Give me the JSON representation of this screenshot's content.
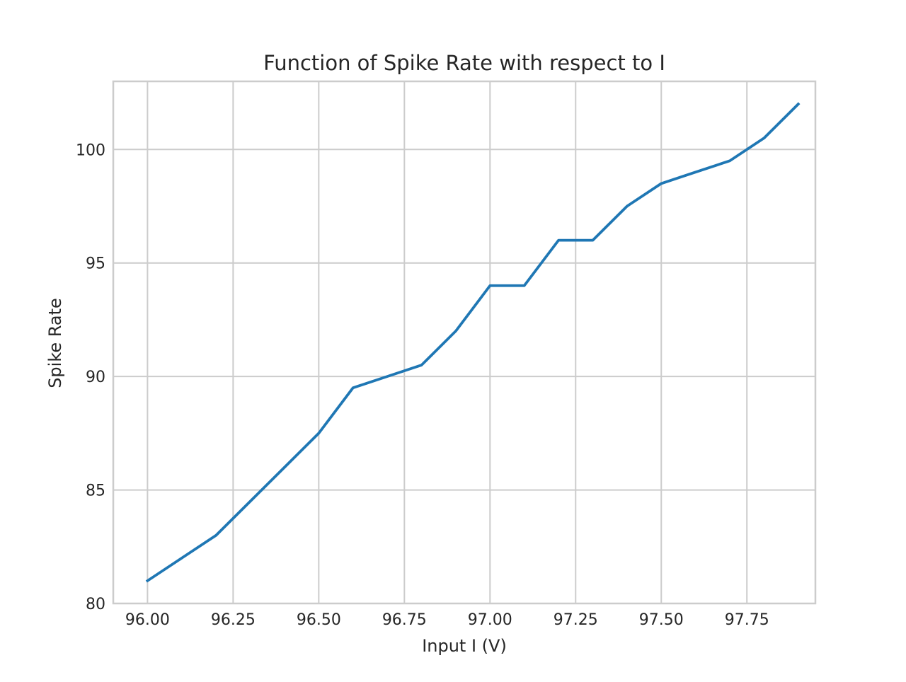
{
  "chart_data": {
    "type": "line",
    "title": "Function of Spike Rate with respect to I",
    "xlabel": "Input I (V)",
    "ylabel": "Spike Rate",
    "xlim": [
      95.9,
      97.95
    ],
    "ylim": [
      80,
      103
    ],
    "x_ticks": [
      96.0,
      96.25,
      96.5,
      96.75,
      97.0,
      97.25,
      97.5,
      97.75
    ],
    "x_tick_labels": [
      "96.00",
      "96.25",
      "96.50",
      "96.75",
      "97.00",
      "97.25",
      "97.50",
      "97.75"
    ],
    "y_ticks": [
      80,
      85,
      90,
      95,
      100
    ],
    "y_tick_labels": [
      "80",
      "85",
      "90",
      "95",
      "100"
    ],
    "grid": true,
    "series": [
      {
        "color": "#1f77b4",
        "x": [
          96.0,
          96.1,
          96.2,
          96.3,
          96.4,
          96.5,
          96.6,
          96.7,
          96.8,
          96.9,
          97.0,
          97.1,
          97.2,
          97.3,
          97.4,
          97.5,
          97.6,
          97.7,
          97.8,
          97.9
        ],
        "y": [
          81.0,
          82.0,
          83.0,
          84.5,
          86.0,
          87.5,
          89.5,
          90.0,
          90.5,
          92.0,
          94.0,
          94.0,
          96.0,
          96.0,
          97.5,
          98.5,
          99.0,
          99.5,
          100.5,
          102.0
        ]
      }
    ]
  }
}
